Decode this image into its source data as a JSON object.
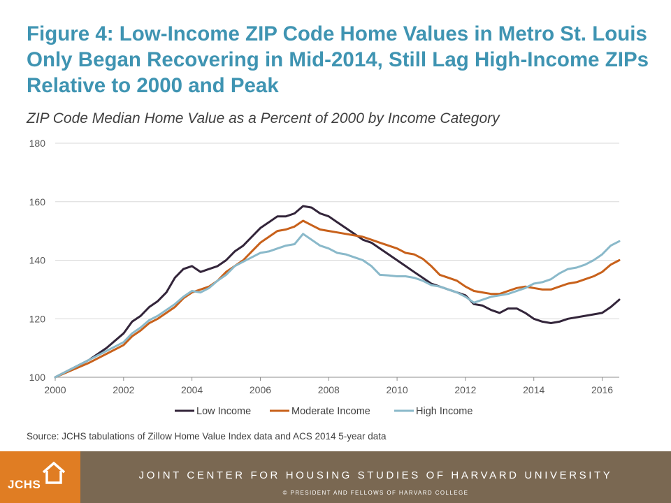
{
  "page": {
    "title": "Figure 4: Low-Income ZIP Code Home Values in Metro St. Louis Only Began Recovering in Mid-2014, Still Lag High-Income ZIPs Relative to 2000 and Peak",
    "subtitle": "ZIP Code Median Home Value as a Percent of 2000 by Income Category",
    "source": "Source: JCHS tabulations of Zillow Home Value Index data and ACS 2014 5-year data"
  },
  "footer": {
    "logo_text": "JCHS",
    "organization": "JOINT CENTER FOR HOUSING STUDIES OF HARVARD UNIVERSITY",
    "copyright": "© PRESIDENT AND FELLOWS OF HARVARD COLLEGE",
    "logo_color": "#e07d23",
    "bar_color": "#7a6852"
  },
  "chart_data": {
    "type": "line",
    "title": "ZIP Code Median Home Value as a Percent of 2000 by Income Category",
    "xlabel": "",
    "ylabel": "",
    "xlim": [
      2000,
      2016.5
    ],
    "ylim": [
      100,
      180
    ],
    "yticks": [
      100,
      120,
      140,
      160,
      180
    ],
    "xticks": [
      2000,
      2002,
      2004,
      2006,
      2008,
      2010,
      2012,
      2014,
      2016
    ],
    "grid": "horizontal",
    "legend_position": "bottom",
    "series": [
      {
        "name": "Low Income",
        "color": "#33253a",
        "x": [
          2000,
          2000.5,
          2001,
          2001.5,
          2002,
          2002.25,
          2002.5,
          2002.75,
          2003,
          2003.25,
          2003.5,
          2003.75,
          2004,
          2004.25,
          2004.5,
          2004.75,
          2005,
          2005.25,
          2005.5,
          2005.75,
          2006,
          2006.25,
          2006.5,
          2006.75,
          2007,
          2007.25,
          2007.5,
          2007.75,
          2008,
          2008.25,
          2008.5,
          2008.75,
          2009,
          2009.25,
          2009.5,
          2009.75,
          2010,
          2010.25,
          2010.5,
          2010.75,
          2011,
          2011.25,
          2011.5,
          2011.75,
          2012,
          2012.25,
          2012.5,
          2012.75,
          2013,
          2013.25,
          2013.5,
          2013.75,
          2014,
          2014.25,
          2014.5,
          2014.75,
          2015,
          2015.25,
          2015.5,
          2015.75,
          2016,
          2016.25,
          2016.5
        ],
        "values": [
          100,
          103,
          106,
          110,
          115,
          119,
          121,
          124,
          126,
          129,
          134,
          137,
          138,
          136,
          137,
          138,
          140,
          143,
          145,
          148,
          151,
          153,
          155,
          155,
          156,
          158.5,
          158,
          156,
          155,
          153,
          151,
          149,
          147,
          146,
          144,
          142,
          140,
          138,
          136,
          134,
          132,
          131,
          130,
          129,
          128,
          125,
          124.5,
          123,
          122,
          123.5,
          123.5,
          122,
          120,
          119,
          118.5,
          119,
          120,
          120.5,
          121,
          121.5,
          122,
          124,
          126.5
        ]
      },
      {
        "name": "Moderate Income",
        "color": "#c8611b",
        "x": [
          2000,
          2000.5,
          2001,
          2001.5,
          2002,
          2002.25,
          2002.5,
          2002.75,
          2003,
          2003.25,
          2003.5,
          2003.75,
          2004,
          2004.25,
          2004.5,
          2004.75,
          2005,
          2005.25,
          2005.5,
          2005.75,
          2006,
          2006.25,
          2006.5,
          2006.75,
          2007,
          2007.25,
          2007.5,
          2007.75,
          2008,
          2008.25,
          2008.5,
          2008.75,
          2009,
          2009.25,
          2009.5,
          2009.75,
          2010,
          2010.25,
          2010.5,
          2010.75,
          2011,
          2011.25,
          2011.5,
          2011.75,
          2012,
          2012.25,
          2012.5,
          2012.75,
          2013,
          2013.25,
          2013.5,
          2013.75,
          2014,
          2014.25,
          2014.5,
          2014.75,
          2015,
          2015.25,
          2015.5,
          2015.75,
          2016,
          2016.25,
          2016.5
        ],
        "values": [
          100,
          102.5,
          105,
          108,
          111,
          114,
          116,
          118.5,
          120,
          122,
          124,
          127,
          129,
          130,
          131,
          133,
          136,
          138,
          140,
          143,
          146,
          148,
          150,
          150.5,
          151.5,
          153.5,
          152,
          150.5,
          150,
          149.5,
          149,
          148.5,
          148,
          147,
          146,
          145,
          144,
          142.5,
          142,
          140.5,
          138,
          135,
          134,
          133,
          131,
          129.5,
          129,
          128.5,
          128.5,
          129.5,
          130.5,
          131,
          130.5,
          130,
          130,
          131,
          132,
          132.5,
          133.5,
          134.5,
          136,
          138.5,
          140
        ]
      },
      {
        "name": "High Income",
        "color": "#8ab9ca",
        "x": [
          2000,
          2000.5,
          2001,
          2001.5,
          2002,
          2002.25,
          2002.5,
          2002.75,
          2003,
          2003.25,
          2003.5,
          2003.75,
          2004,
          2004.25,
          2004.5,
          2004.75,
          2005,
          2005.25,
          2005.5,
          2005.75,
          2006,
          2006.25,
          2006.5,
          2006.75,
          2007,
          2007.25,
          2007.5,
          2007.75,
          2008,
          2008.25,
          2008.5,
          2008.75,
          2009,
          2009.25,
          2009.5,
          2009.75,
          2010,
          2010.25,
          2010.5,
          2010.75,
          2011,
          2011.25,
          2011.5,
          2011.75,
          2012,
          2012.25,
          2012.5,
          2012.75,
          2013,
          2013.25,
          2013.5,
          2013.75,
          2014,
          2014.25,
          2014.5,
          2014.75,
          2015,
          2015.25,
          2015.5,
          2015.75,
          2016,
          2016.25,
          2016.5
        ],
        "values": [
          100,
          103,
          106,
          109,
          112,
          115,
          117,
          119.5,
          121,
          123,
          125,
          127.5,
          129.5,
          129,
          130.5,
          133,
          135,
          138,
          139.5,
          141,
          142.5,
          143,
          144,
          145,
          145.5,
          149,
          147,
          145,
          144,
          142.5,
          142,
          141,
          140,
          138,
          135,
          134.8,
          134.5,
          134.5,
          134,
          133,
          131.5,
          131,
          130,
          129,
          127.5,
          125.5,
          126.5,
          127.5,
          128,
          128.5,
          129.5,
          130.5,
          132,
          132.5,
          133.5,
          135.5,
          137,
          137.5,
          138.5,
          140,
          142,
          145,
          146.5
        ]
      }
    ]
  }
}
